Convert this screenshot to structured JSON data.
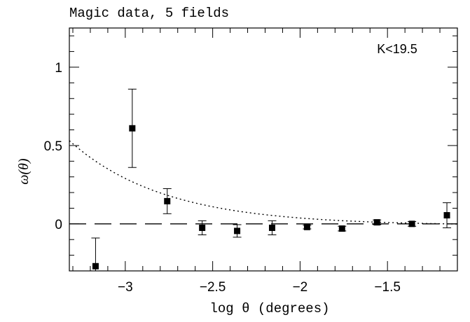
{
  "chart_data": {
    "type": "scatter",
    "title": "Magic data, 5 fields",
    "annotation": "K<19.5",
    "xlabel": "log θ (degrees)",
    "ylabel": "ω(θ)",
    "xlim": [
      -3.32,
      -1.1
    ],
    "ylim": [
      -0.3,
      1.25
    ],
    "xticks": [
      {
        "value": -3,
        "label": "−3"
      },
      {
        "value": -2.5,
        "label": "−2.5"
      },
      {
        "value": -2,
        "label": "−2"
      },
      {
        "value": -1.5,
        "label": "−1.5"
      }
    ],
    "yticks": [
      {
        "value": 0,
        "label": "0"
      },
      {
        "value": 0.5,
        "label": "0.5"
      },
      {
        "value": 1,
        "label": "1"
      }
    ],
    "series": [
      {
        "style": "points-with-errorbars",
        "points": [
          {
            "x": -3.17,
            "y": -0.27,
            "err": 0.18
          },
          {
            "x": -2.96,
            "y": 0.61,
            "err": 0.25
          },
          {
            "x": -2.76,
            "y": 0.145,
            "err": 0.08
          },
          {
            "x": -2.56,
            "y": -0.025,
            "err": 0.045
          },
          {
            "x": -2.36,
            "y": -0.045,
            "err": 0.04
          },
          {
            "x": -2.16,
            "y": -0.025,
            "err": 0.045
          },
          {
            "x": -1.96,
            "y": -0.02,
            "err": 0.012
          },
          {
            "x": -1.76,
            "y": -0.03,
            "err": 0.015
          },
          {
            "x": -1.56,
            "y": 0.01,
            "err": 0.015
          },
          {
            "x": -1.36,
            "y": 0.0,
            "err": 0.015
          },
          {
            "x": -1.16,
            "y": 0.055,
            "err": 0.08
          }
        ]
      },
      {
        "style": "dotted",
        "curve": {
          "amplitude": 0.3,
          "slope": -0.8,
          "offset": -0.01
        }
      },
      {
        "style": "dashed",
        "constant": 0
      }
    ]
  }
}
